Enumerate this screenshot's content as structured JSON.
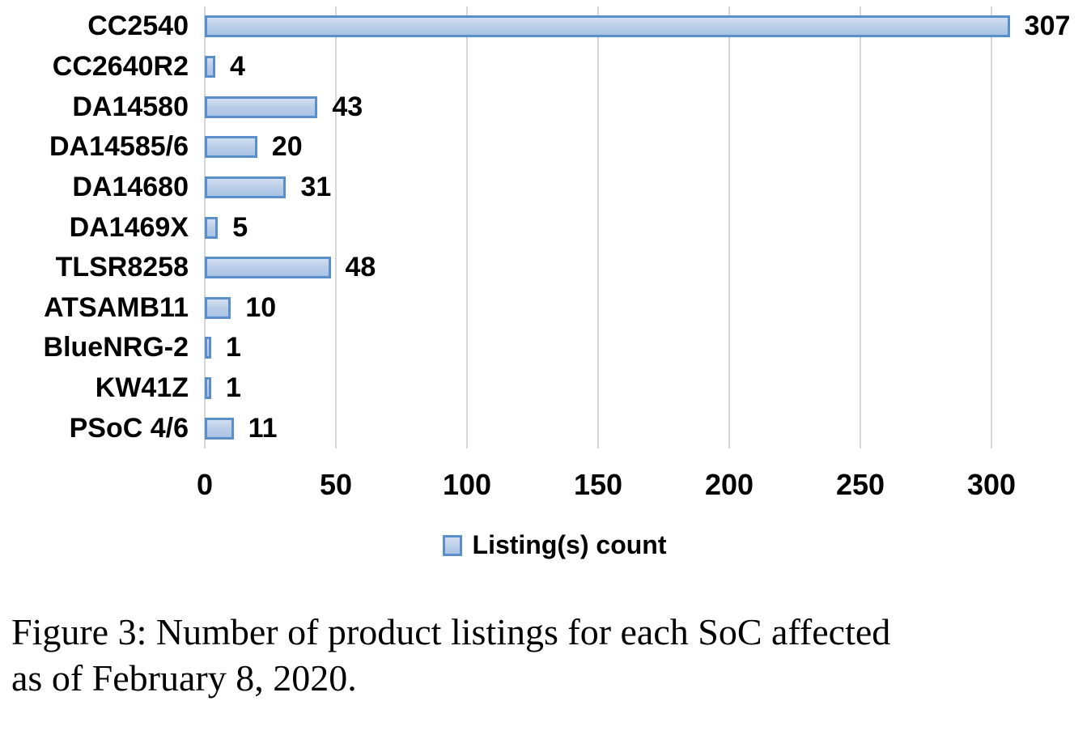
{
  "chart_data": {
    "type": "bar",
    "orientation": "horizontal",
    "title": "",
    "xlabel": "",
    "ylabel": "",
    "categories": [
      "CC2540",
      "CC2640R2",
      "DA14580",
      "DA14585/6",
      "DA14680",
      "DA1469X",
      "TLSR8258",
      "ATSAMB11",
      "BlueNRG-2",
      "KW41Z",
      "PSoC 4/6"
    ],
    "values": [
      307,
      4,
      43,
      20,
      31,
      5,
      48,
      10,
      1,
      1,
      11
    ],
    "data_labels": [
      "307",
      "4",
      "43",
      "20",
      "31",
      "5",
      "48",
      "10",
      "1",
      "1",
      "11"
    ],
    "x_tick_labels": [
      "0",
      "50",
      "100",
      "150",
      "200",
      "250",
      "300"
    ],
    "x_tick_values": [
      0,
      50,
      100,
      150,
      200,
      250,
      300
    ],
    "xlim": [
      0,
      338
    ],
    "grid": true,
    "legend": {
      "label": "Listing(s) count",
      "position": "bottom"
    },
    "colors": {
      "bar_fill_light": "#d2dff1",
      "bar_fill_dark": "#a9c2e5",
      "bar_border": "#5b8fc9",
      "gridline": "#d6d6d6",
      "text": "#000000"
    }
  },
  "caption": {
    "full_text": "Figure 3: Number of product listings for each SoC affected as of February 8, 2020.",
    "line1": "Figure 3: Number of product listings for each SoC affected",
    "line2": "as of February 8, 2020."
  }
}
